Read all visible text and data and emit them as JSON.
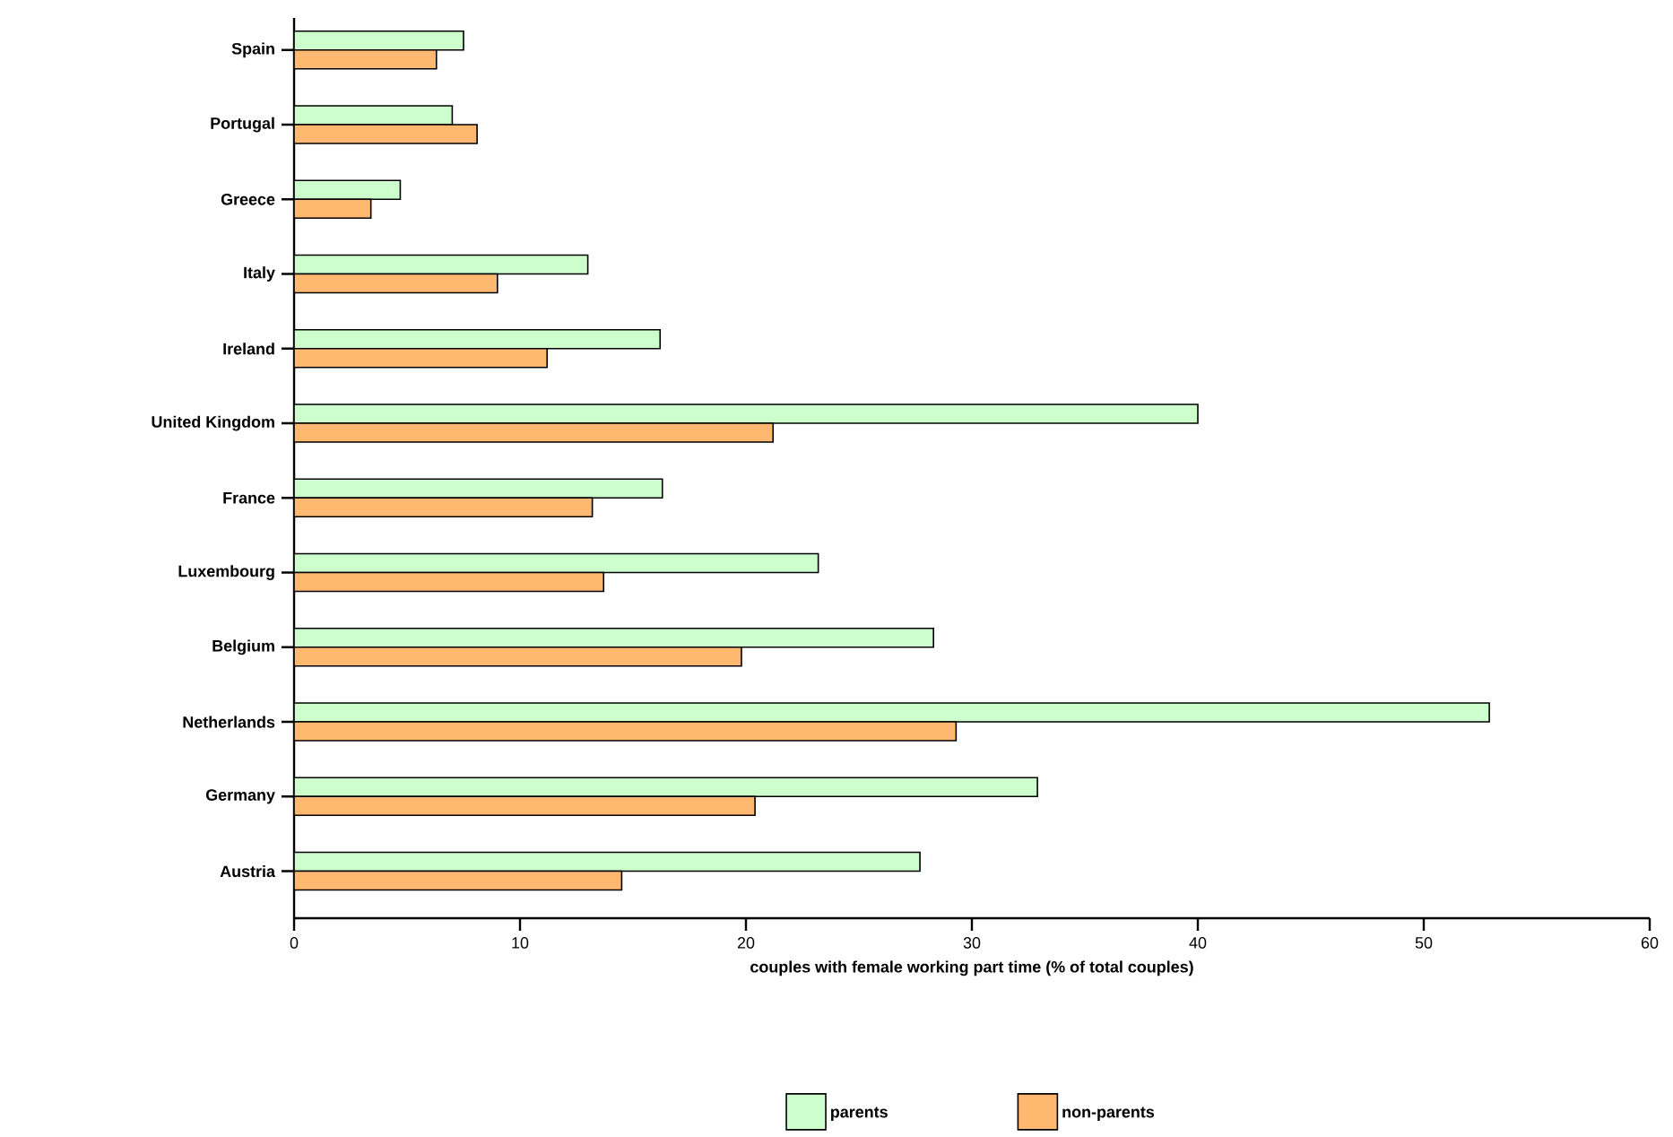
{
  "chart_data": {
    "type": "bar",
    "orientation": "horizontal",
    "xlabel": "couples with female working part time (% of total couples)",
    "categories": [
      "Spain",
      "Portugal",
      "Greece",
      "Italy",
      "Ireland",
      "United Kingdom",
      "France",
      "Luxembourg",
      "Belgium",
      "Netherlands",
      "Germany",
      "Austria"
    ],
    "series": [
      {
        "name": "parents",
        "color": "#ccffcc",
        "values": [
          7.5,
          7.0,
          4.7,
          13.0,
          16.2,
          40.0,
          16.3,
          23.2,
          28.3,
          52.9,
          32.9,
          27.7
        ]
      },
      {
        "name": "non-parents",
        "color": "#ffb870",
        "values": [
          6.3,
          8.1,
          3.4,
          9.0,
          11.2,
          21.2,
          13.2,
          13.7,
          19.8,
          29.3,
          20.4,
          14.5
        ]
      }
    ],
    "xlim": [
      0,
      60
    ],
    "xticks": [
      0,
      10,
      20,
      30,
      40,
      50,
      60
    ],
    "grid": false,
    "legend": "bottom"
  }
}
